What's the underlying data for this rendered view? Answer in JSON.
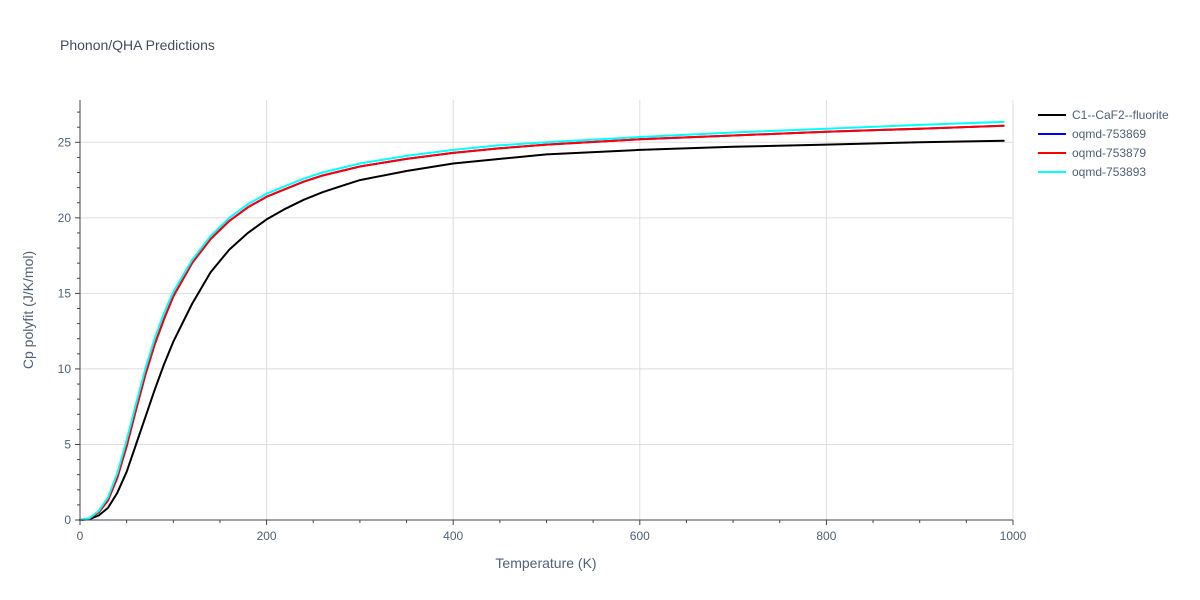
{
  "chart_data": {
    "type": "line",
    "title": "Phonon/QHA Predictions",
    "xlabel": "Temperature (K)",
    "ylabel": "Cp polyfit (J/K/mol)",
    "xlim": [
      0,
      1000
    ],
    "ylim": [
      0,
      27.8
    ],
    "xticks": [
      0,
      200,
      400,
      600,
      800,
      1000
    ],
    "yticks": [
      0,
      5,
      10,
      15,
      20,
      25
    ],
    "grid": true,
    "legend_position": "top-right",
    "series": [
      {
        "name": "C1--CaF2--fluorite",
        "color": "#000000",
        "x": [
          0,
          10,
          20,
          30,
          40,
          50,
          60,
          70,
          80,
          90,
          100,
          120,
          140,
          160,
          180,
          200,
          220,
          240,
          260,
          280,
          300,
          350,
          400,
          450,
          500,
          600,
          700,
          800,
          900,
          990
        ],
        "y": [
          0,
          0.05,
          0.3,
          0.8,
          1.8,
          3.2,
          5.0,
          6.8,
          8.6,
          10.3,
          11.8,
          14.3,
          16.4,
          17.9,
          19.0,
          19.9,
          20.6,
          21.2,
          21.7,
          22.1,
          22.5,
          23.1,
          23.6,
          23.9,
          24.2,
          24.5,
          24.7,
          24.85,
          25.0,
          25.1
        ]
      },
      {
        "name": "oqmd-753869",
        "color": "#0000ff",
        "x": [
          0,
          10,
          20,
          30,
          40,
          50,
          60,
          70,
          80,
          90,
          100,
          120,
          140,
          160,
          180,
          200,
          220,
          240,
          260,
          280,
          300,
          350,
          400,
          450,
          500,
          600,
          700,
          800,
          900,
          990
        ],
        "y": [
          0,
          0.1,
          0.5,
          1.3,
          2.8,
          4.9,
          7.3,
          9.6,
          11.6,
          13.3,
          14.8,
          17.0,
          18.6,
          19.8,
          20.7,
          21.4,
          21.9,
          22.4,
          22.8,
          23.1,
          23.4,
          23.9,
          24.3,
          24.6,
          24.85,
          25.2,
          25.45,
          25.7,
          25.9,
          26.1
        ]
      },
      {
        "name": "oqmd-753879",
        "color": "#ff0000",
        "x": [
          0,
          10,
          20,
          30,
          40,
          50,
          60,
          70,
          80,
          90,
          100,
          120,
          140,
          160,
          180,
          200,
          220,
          240,
          260,
          280,
          300,
          350,
          400,
          450,
          500,
          600,
          700,
          800,
          900,
          990
        ],
        "y": [
          0,
          0.1,
          0.5,
          1.3,
          2.8,
          4.9,
          7.3,
          9.6,
          11.6,
          13.3,
          14.8,
          17.0,
          18.6,
          19.8,
          20.7,
          21.4,
          21.9,
          22.4,
          22.8,
          23.1,
          23.4,
          23.9,
          24.3,
          24.6,
          24.85,
          25.2,
          25.45,
          25.7,
          25.9,
          26.1
        ]
      },
      {
        "name": "oqmd-753893",
        "color": "#00ffff",
        "x": [
          0,
          10,
          20,
          30,
          40,
          50,
          60,
          70,
          80,
          90,
          100,
          120,
          140,
          160,
          180,
          200,
          220,
          240,
          260,
          280,
          300,
          350,
          400,
          450,
          500,
          600,
          700,
          800,
          900,
          990
        ],
        "y": [
          0,
          0.12,
          0.6,
          1.5,
          3.1,
          5.3,
          7.7,
          10.0,
          12.0,
          13.7,
          15.1,
          17.2,
          18.8,
          20.0,
          20.9,
          21.6,
          22.1,
          22.6,
          23.0,
          23.3,
          23.6,
          24.1,
          24.5,
          24.8,
          25.0,
          25.35,
          25.65,
          25.9,
          26.15,
          26.35
        ]
      }
    ]
  }
}
